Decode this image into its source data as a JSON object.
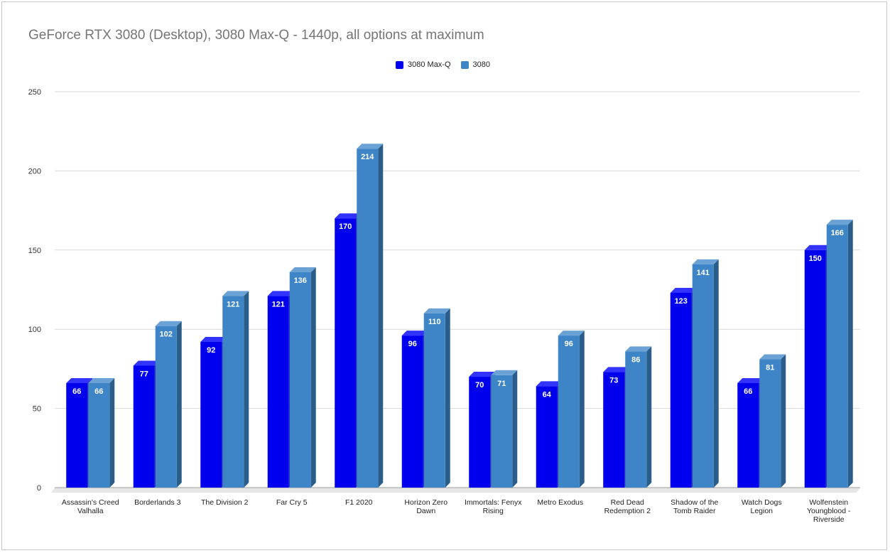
{
  "chart_data": {
    "type": "bar",
    "title": "GeForce RTX 3080 (Desktop), 3080 Max-Q - 1440p, all options at maximum",
    "xlabel": "",
    "ylabel": "",
    "ylim": [
      0,
      250
    ],
    "yticks": [
      0,
      50,
      100,
      150,
      200,
      250
    ],
    "grid": true,
    "legend_position": "top-center",
    "categories": [
      [
        "Assassin's Creed",
        "Valhalla"
      ],
      [
        "Borderlands 3"
      ],
      [
        "The Division 2"
      ],
      [
        "Far Cry 5"
      ],
      [
        "F1 2020"
      ],
      [
        "Horizon Zero",
        "Dawn"
      ],
      [
        "Immortals: Fenyx",
        "Rising"
      ],
      [
        "Metro Exodus"
      ],
      [
        "Red Dead",
        "Redemption 2"
      ],
      [
        "Shadow of the",
        "Tomb Raider"
      ],
      [
        "Watch Dogs",
        "Legion"
      ],
      [
        "Wolfenstein",
        "Youngblood -",
        "Riverside"
      ]
    ],
    "series": [
      {
        "name": "3080 Max-Q",
        "color": "#0000ee",
        "side": "#1a1ab0",
        "top": "#3333ff",
        "values": [
          66,
          77,
          92,
          121,
          170,
          96,
          70,
          64,
          73,
          123,
          66,
          150
        ]
      },
      {
        "name": "3080",
        "color": "#3d85c6",
        "side": "#2a5d8a",
        "top": "#6aa2d6",
        "values": [
          66,
          102,
          121,
          136,
          214,
          110,
          71,
          96,
          86,
          141,
          81,
          166
        ]
      }
    ]
  }
}
